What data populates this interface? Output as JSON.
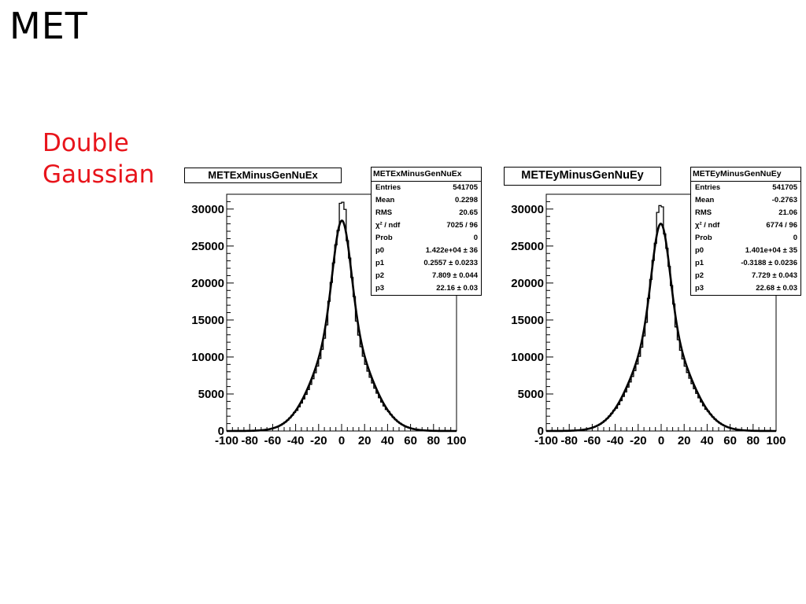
{
  "slide": {
    "title": "MET",
    "subtitle_line1": "Double",
    "subtitle_line2": "Gaussian"
  },
  "chart_data": [
    {
      "type": "histogram",
      "title": "METExMinusGenNuEx",
      "xlim": [
        -100,
        100
      ],
      "ylim": [
        0,
        32000
      ],
      "x_ticks": [
        -100,
        -80,
        -60,
        -40,
        -20,
        0,
        20,
        40,
        60,
        80,
        100
      ],
      "y_ticks": [
        0,
        5000,
        10000,
        15000,
        20000,
        25000,
        30000
      ],
      "x_tick_labels": [
        "-100",
        "-80",
        "-60",
        "-40",
        "-20",
        "0",
        "20",
        "40",
        "60",
        "80",
        "100"
      ],
      "y_tick_labels": [
        "0",
        "5000",
        "10000",
        "15000",
        "20000",
        "25000",
        "30000"
      ],
      "fit": {
        "p0": 14220,
        "p1": 0.2557,
        "p2": 7.809,
        "p3": 22.16
      },
      "stats": {
        "name": "METExMinusGenNuEx",
        "rows": [
          {
            "label": "Entries",
            "value": "541705"
          },
          {
            "label": "Mean",
            "value": "0.2298"
          },
          {
            "label": "RMS",
            "value": "20.65"
          },
          {
            "label": "χ² / ndf",
            "value": "7025 / 96"
          },
          {
            "label": "Prob",
            "value": "0"
          },
          {
            "label": "p0",
            "value": "1.422e+04 ± 36"
          },
          {
            "label": "p1",
            "value": "0.2557 ± 0.0233"
          },
          {
            "label": "p2",
            "value": "7.809 ± 0.044"
          },
          {
            "label": "p3",
            "value": "22.16 ± 0.03"
          }
        ]
      }
    },
    {
      "type": "histogram",
      "title": "METEyMinusGenNuEy",
      "xlim": [
        -100,
        100
      ],
      "ylim": [
        0,
        32000
      ],
      "x_ticks": [
        -100,
        -80,
        -60,
        -40,
        -20,
        0,
        20,
        40,
        60,
        80,
        100
      ],
      "y_ticks": [
        0,
        5000,
        10000,
        15000,
        20000,
        25000,
        30000
      ],
      "x_tick_labels": [
        "-100",
        "-80",
        "-60",
        "-40",
        "-20",
        "0",
        "20",
        "40",
        "60",
        "80",
        "100"
      ],
      "y_tick_labels": [
        "0",
        "5000",
        "10000",
        "15000",
        "20000",
        "25000",
        "30000"
      ],
      "fit": {
        "p0": 14010,
        "p1": -0.3188,
        "p2": 7.729,
        "p3": 22.68
      },
      "stats": {
        "name": "METEyMinusGenNuEy",
        "rows": [
          {
            "label": "Entries",
            "value": "541705"
          },
          {
            "label": "Mean",
            "value": "-0.2763"
          },
          {
            "label": "RMS",
            "value": "21.06"
          },
          {
            "label": "χ² / ndf",
            "value": "6774 / 96"
          },
          {
            "label": "Prob",
            "value": "0"
          },
          {
            "label": "p0",
            "value": "1.401e+04 ± 35"
          },
          {
            "label": "p1",
            "value": "-0.3188 ± 0.0236"
          },
          {
            "label": "p2",
            "value": "7.729 ± 0.043"
          },
          {
            "label": "p3",
            "value": "22.68 ± 0.03"
          }
        ]
      }
    }
  ]
}
